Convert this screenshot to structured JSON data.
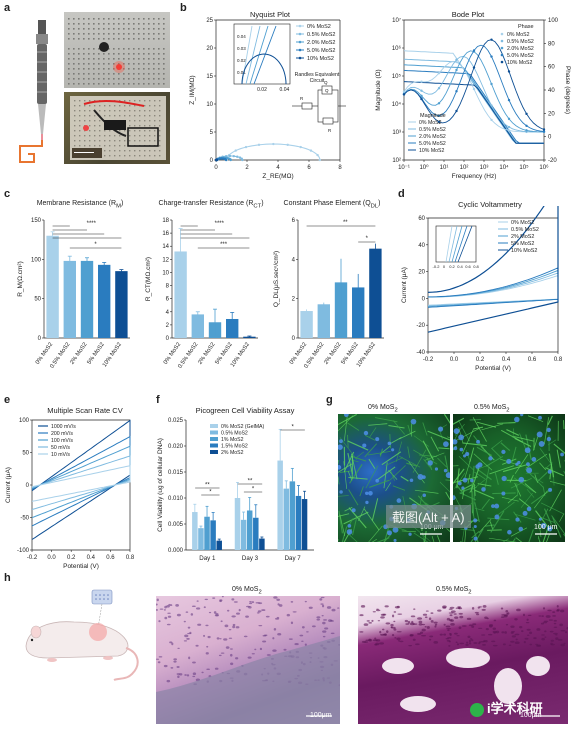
{
  "panels": {
    "a": "a",
    "b": "b",
    "c": "c",
    "d": "d",
    "e": "e",
    "f": "f",
    "g": "g",
    "h": "h"
  },
  "panel_b": {
    "nyquist_title": "Nyquist Plot",
    "bode_title": "Bode Plot",
    "randles_title": "Randles Equivalent\nCircuit",
    "circuit_labels": {
      "rs": "R",
      "q": "Q",
      "qdl": "Q",
      "rct": "R"
    }
  },
  "panel_c": {
    "titles": [
      "Membrane Resistance (R",
      "Charge-transfer Resistance (R",
      "Constant Phase Element (Q"
    ]
  },
  "panel_d": {
    "title": "Cyclic Voltammetry"
  },
  "panel_e": {
    "title": "Multiple Scan Rate CV"
  },
  "panel_f": {
    "title": "Picogreen Cell Viability Assay"
  },
  "panel_g": {
    "labels": [
      "0% MoS",
      "0.5% MoS"
    ],
    "scale": [
      "100 μm",
      "100 μm"
    ]
  },
  "panel_h": {
    "labels": [
      "0% MoS",
      "0.5% MoS"
    ],
    "scale": [
      "100μm",
      "100μm"
    ]
  },
  "overlay": {
    "screenshot_text": "截图(Alt + A)",
    "watermark": "i学术科研"
  },
  "colors": {
    "c0": "#a9d1ea",
    "c1": "#7fbbe0",
    "c2": "#4f9fd0",
    "c3": "#2a7cbf",
    "c4": "#0e4f94"
  },
  "chart_data": [
    {
      "id": "nyquist",
      "type": "line",
      "title": "Nyquist Plot",
      "xlabel": "Z_RE(MΩ)",
      "ylabel": "Z_IM(MΩ)",
      "xlim": [
        0,
        8
      ],
      "ylim": [
        0,
        25
      ],
      "xticks": [
        "0",
        "2",
        "4",
        "6",
        "8"
      ],
      "yticks": [
        "0",
        "5",
        "10",
        "15",
        "20",
        "25"
      ],
      "legend": [
        "0% MoS2",
        "0.5% MoS2",
        "2.0% MoS2",
        "5.0% MoS2",
        "10% MoS2"
      ],
      "inset": {
        "xticks": [
          "0.02",
          "0.04"
        ],
        "yticks": [
          "0.01",
          "0.02",
          "0.03",
          "0.04"
        ]
      },
      "series": [
        {
          "name": "0% MoS2",
          "center": 3.7,
          "radius": 3.0,
          "yscale": 0.95
        },
        {
          "name": "0.5% MoS2",
          "center": 0.9,
          "radius": 0.8,
          "yscale": 0.9
        },
        {
          "name": "2.0% MoS2",
          "center": 0.5,
          "radius": 0.45,
          "yscale": 0.9
        },
        {
          "name": "5.0% MoS2",
          "center": 0.35,
          "radius": 0.3,
          "yscale": 0.9
        },
        {
          "name": "10% MoS2",
          "center": 0.03,
          "radius": 0.02,
          "yscale": 0.9
        }
      ]
    },
    {
      "id": "bode",
      "type": "line",
      "title": "Bode Plot",
      "xlabel": "Frequency (Hz)",
      "ylabel": "Magnitude (Ω)",
      "y2label": "Phase (degrees)",
      "xticks": [
        "10⁻¹",
        "10⁰",
        "10¹",
        "10²",
        "10³",
        "10⁴",
        "10⁵",
        "10⁶"
      ],
      "yticks": [
        "10²",
        "10³",
        "10⁴",
        "10⁵",
        "10⁶",
        "10⁷"
      ],
      "y2ticks": [
        "-20",
        "0",
        "20",
        "40",
        "60",
        "80",
        "100"
      ],
      "legend_phase": [
        "0% MoS2",
        "0.5% MoS2",
        "2.0% MoS2",
        "5.0% MoS2",
        "10% MoS2"
      ],
      "legend_mag": [
        "0% MoS2",
        "0.5% MoS2",
        "2.0% MoS2",
        "5.0% MoS2",
        "10% MoS2"
      ],
      "legend_titles": [
        "Phase",
        "Magnitude"
      ]
    },
    {
      "id": "c1",
      "type": "bar",
      "title": "Membrane Resistance (R_M)",
      "ylabel": "R_M(Ω.cm²)",
      "categories": [
        "0% MoS2",
        "0.5% MoS2",
        "2% MoS2",
        "5% MoS2",
        "10% MoS2"
      ],
      "values": [
        130,
        98,
        98,
        93,
        85
      ],
      "errors": [
        5,
        6,
        4,
        3,
        2
      ],
      "ylim": [
        0,
        150
      ],
      "yticks": [
        "0",
        "50",
        "100",
        "150"
      ],
      "sig": [
        "****",
        "*"
      ]
    },
    {
      "id": "c2",
      "type": "bar",
      "title": "Charge-transfer Resistance (R_CT)",
      "ylabel": "R_CT(MΩ.cm²)",
      "categories": [
        "0% MoS2",
        "0.5% MoS2",
        "2% MoS2",
        "5% MoS2",
        "10% MoS2"
      ],
      "values": [
        13.2,
        3.6,
        2.4,
        2.9,
        0.2
      ],
      "errors": [
        3.5,
        0.4,
        2.0,
        1.0,
        0.1
      ],
      "ylim": [
        0,
        18
      ],
      "yticks": [
        "0",
        "2",
        "4",
        "6",
        "8",
        "10",
        "12",
        "14",
        "16",
        "18"
      ],
      "sig": [
        "****",
        "***"
      ]
    },
    {
      "id": "c3",
      "type": "bar",
      "title": "Constant Phase Element (Q_DL)",
      "ylabel": "Q_DL(μS.secⁿ/cm²)",
      "categories": [
        "0% MoS2",
        "0.5% MoS2",
        "2% MoS2",
        "5% MoS2",
        "10% MoS2"
      ],
      "values": [
        1.6,
        2.0,
        3.3,
        3.0,
        5.3
      ],
      "errors": [
        0.1,
        0.1,
        1.4,
        0.8,
        0.3
      ],
      "ylim": [
        0,
        7
      ],
      "yticks": [
        "0",
        "2",
        "4",
        "6"
      ],
      "sig": [
        "**",
        "*"
      ]
    },
    {
      "id": "d",
      "type": "line",
      "title": "Cyclic Voltammetry",
      "xlabel": "Potential (V)",
      "ylabel": "Current (μA)",
      "xticks": [
        "-0.2",
        "0.0",
        "0.2",
        "0.4",
        "0.6",
        "0.8"
      ],
      "yticks": [
        "-40",
        "-20",
        "0",
        "20",
        "40",
        "60"
      ],
      "legend": [
        "0% MoS2",
        "0.5% MoS2",
        "2% MoS2",
        "5% MoS2",
        "10% MoS2"
      ],
      "inset_xticks": [
        "-0.2",
        "0",
        "0.2",
        "0.4",
        "0.6",
        "0.8"
      ]
    },
    {
      "id": "e",
      "type": "line",
      "title": "Multiple Scan Rate CV",
      "xlabel": "Potential (V)",
      "ylabel": "Current (μA)",
      "xticks": [
        "-0.2",
        "0.0",
        "0.2",
        "0.4",
        "0.6",
        "0.8"
      ],
      "yticks": [
        "-100",
        "-50",
        "0",
        "50",
        "100"
      ],
      "legend": [
        "1000 mV/s",
        "200 mV/s",
        "100 mV/s",
        "50 mV/s",
        "10 mV/s"
      ]
    },
    {
      "id": "f",
      "type": "bar",
      "title": "Picogreen Cell Viability Assay",
      "ylabel": "Cell Viability (ug of cellular DNA)",
      "categories": [
        "Day 1",
        "Day 3",
        "Day 7"
      ],
      "legend": [
        "0% MoS2 (GelMA)",
        "0.5% MoS2",
        "1% MoS2",
        "1.5% MoS2",
        "2% MoS2"
      ],
      "series": [
        {
          "name": "0% MoS2 (GelMA)",
          "values": [
            0.0073,
            0.01,
            0.0172
          ],
          "errors": [
            0.0015,
            0.003,
            0.006
          ]
        },
        {
          "name": "0.5% MoS2",
          "values": [
            0.0042,
            0.0058,
            0.0118
          ],
          "errors": [
            0.0004,
            0.0015,
            0.0015
          ]
        },
        {
          "name": "1% MoS2",
          "values": [
            0.0064,
            0.0076,
            0.0132
          ],
          "errors": [
            0.002,
            0.0025,
            0.0025
          ]
        },
        {
          "name": "1.5% MoS2",
          "values": [
            0.0057,
            0.0062,
            0.0104
          ],
          "errors": [
            0.0015,
            0.0025,
            0.002
          ]
        },
        {
          "name": "2% MoS2",
          "values": [
            0.0018,
            0.0022,
            0.0098
          ],
          "errors": [
            0.0003,
            0.0003,
            0.0015
          ]
        }
      ],
      "ylim": [
        0,
        0.025
      ],
      "yticks": [
        "0.000",
        "0.005",
        "0.010",
        "0.015",
        "0.020",
        "0.025"
      ],
      "sig": [
        "**",
        "*",
        "**",
        "*",
        "*"
      ]
    }
  ]
}
